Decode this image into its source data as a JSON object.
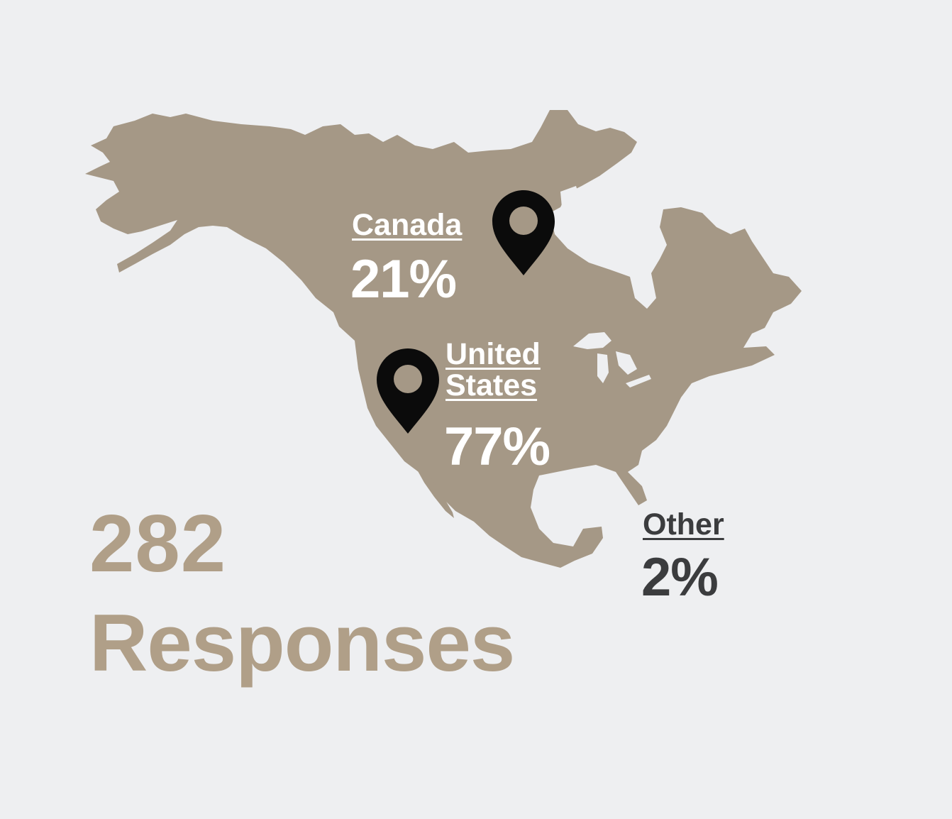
{
  "colors": {
    "background": "#eeeff1",
    "land": "#a59886",
    "pin": "#0b0b0b",
    "on_map_text": "#ffffff",
    "off_map_text": "#3b3c3e",
    "total_text": "#b09f88"
  },
  "regions": {
    "canada": {
      "name": "Canada",
      "percent": "21%",
      "share": 0.21,
      "icon": "map-pin-icon"
    },
    "united_states": {
      "name_line1": "United",
      "name_line2": "States",
      "percent": "77%",
      "share": 0.77,
      "icon": "map-pin-icon"
    },
    "other": {
      "name": "Other",
      "percent": "2%",
      "share": 0.02
    }
  },
  "total": {
    "count": "282",
    "label": "Responses"
  }
}
